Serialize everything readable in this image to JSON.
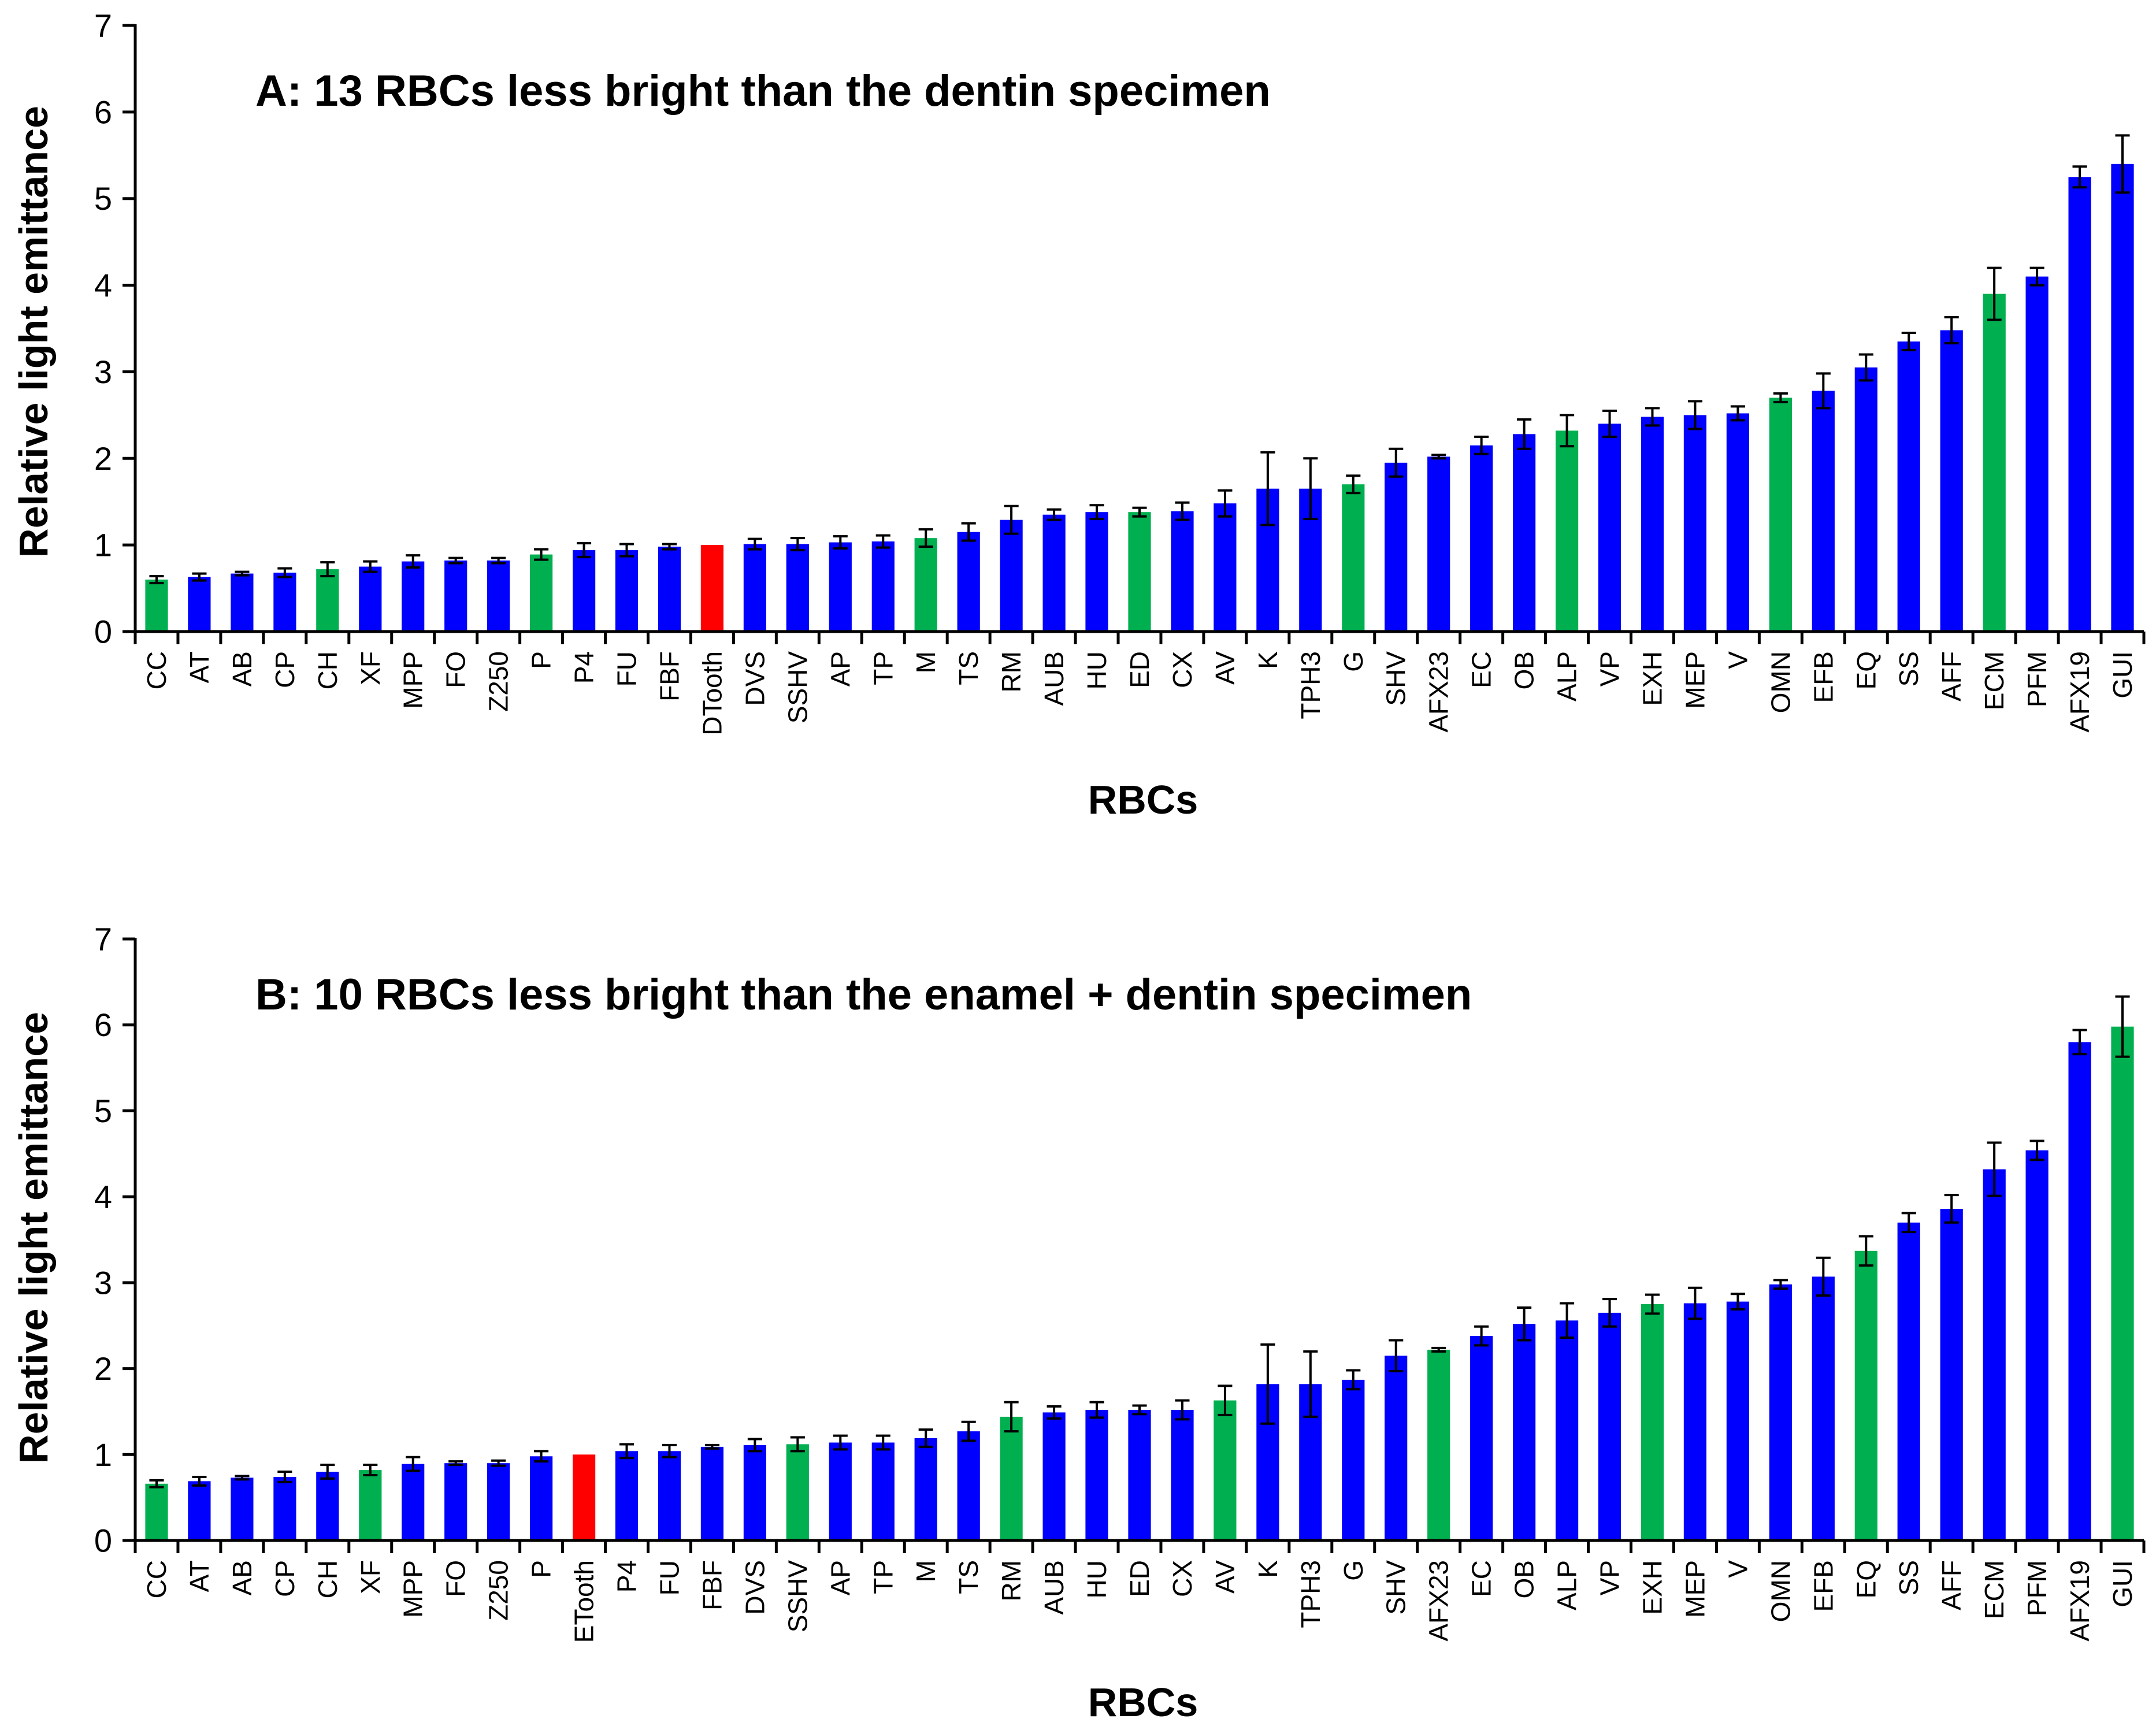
{
  "colors": {
    "standard": "#0000ff",
    "highlight": "#00b050",
    "specimen": "#ff0000"
  },
  "chart_data": [
    {
      "type": "bar",
      "title": "A: 13 RBCs less bright than the dentin specimen",
      "xlabel": "RBCs",
      "ylabel": "Relative light emittance",
      "ylim": [
        0,
        7
      ],
      "yticks": [
        "0",
        "1",
        "2",
        "3",
        "4",
        "5",
        "6",
        "7"
      ],
      "categories": [
        "CC",
        "AT",
        "AB",
        "CP",
        "CH",
        "XF",
        "MPP",
        "FO",
        "Z250",
        "P",
        "P4",
        "FU",
        "FBF",
        "DTooth",
        "DVS",
        "SSHV",
        "AP",
        "TP",
        "M",
        "TS",
        "RM",
        "AUB",
        "HU",
        "ED",
        "CX",
        "AV",
        "K",
        "TPH3",
        "G",
        "SHV",
        "AFX23",
        "EC",
        "OB",
        "ALP",
        "VP",
        "EXH",
        "MEP",
        "V",
        "OMN",
        "EFB",
        "EQ",
        "SS",
        "AFF",
        "ECM",
        "PFM",
        "AFX19",
        "GUI"
      ],
      "values": [
        0.6,
        0.63,
        0.67,
        0.68,
        0.72,
        0.75,
        0.81,
        0.82,
        0.82,
        0.89,
        0.94,
        0.94,
        0.98,
        1.0,
        1.01,
        1.01,
        1.03,
        1.04,
        1.08,
        1.15,
        1.29,
        1.35,
        1.38,
        1.38,
        1.39,
        1.48,
        1.65,
        1.65,
        1.7,
        1.95,
        2.02,
        2.15,
        2.28,
        2.32,
        2.4,
        2.48,
        2.5,
        2.52,
        2.7,
        2.78,
        3.05,
        3.35,
        3.48,
        3.9,
        4.1,
        5.25,
        5.4
      ],
      "errors": [
        0.04,
        0.04,
        0.02,
        0.05,
        0.08,
        0.06,
        0.07,
        0.03,
        0.03,
        0.06,
        0.08,
        0.07,
        0.03,
        0,
        0.06,
        0.07,
        0.07,
        0.07,
        0.1,
        0.1,
        0.16,
        0.06,
        0.08,
        0.05,
        0.1,
        0.15,
        0.42,
        0.35,
        0.1,
        0.16,
        0.02,
        0.1,
        0.17,
        0.18,
        0.15,
        0.1,
        0.16,
        0.08,
        0.05,
        0.2,
        0.15,
        0.1,
        0.15,
        0.3,
        0.1,
        0.12,
        0.33
      ],
      "colors": [
        "#00b050",
        "#0000ff",
        "#0000ff",
        "#0000ff",
        "#00b050",
        "#0000ff",
        "#0000ff",
        "#0000ff",
        "#0000ff",
        "#00b050",
        "#0000ff",
        "#0000ff",
        "#0000ff",
        "#ff0000",
        "#0000ff",
        "#0000ff",
        "#0000ff",
        "#0000ff",
        "#00b050",
        "#0000ff",
        "#0000ff",
        "#0000ff",
        "#0000ff",
        "#00b050",
        "#0000ff",
        "#0000ff",
        "#0000ff",
        "#0000ff",
        "#00b050",
        "#0000ff",
        "#0000ff",
        "#0000ff",
        "#0000ff",
        "#00b050",
        "#0000ff",
        "#0000ff",
        "#0000ff",
        "#0000ff",
        "#00b050",
        "#0000ff",
        "#0000ff",
        "#0000ff",
        "#0000ff",
        "#00b050",
        "#0000ff",
        "#0000ff",
        "#0000ff"
      ]
    },
    {
      "type": "bar",
      "title": "B: 10 RBCs less bright than the enamel + dentin specimen",
      "xlabel": "RBCs",
      "ylabel": "Relative light emittance",
      "ylim": [
        0,
        7
      ],
      "yticks": [
        "0",
        "1",
        "2",
        "3",
        "4",
        "5",
        "6",
        "7"
      ],
      "categories": [
        "CC",
        "AT",
        "AB",
        "CP",
        "CH",
        "XF",
        "MPP",
        "FO",
        "Z250",
        "P",
        "ETooth",
        "P4",
        "FU",
        "FBF",
        "DVS",
        "SSHV",
        "AP",
        "TP",
        "M",
        "TS",
        "RM",
        "AUB",
        "HU",
        "ED",
        "CX",
        "AV",
        "K",
        "TPH3",
        "G",
        "SHV",
        "AFX23",
        "EC",
        "OB",
        "ALP",
        "VP",
        "EXH",
        "MEP",
        "V",
        "OMN",
        "EFB",
        "EQ",
        "SS",
        "AFF",
        "ECM",
        "PFM",
        "AFX19",
        "GUI"
      ],
      "values": [
        0.66,
        0.69,
        0.73,
        0.74,
        0.8,
        0.82,
        0.89,
        0.9,
        0.9,
        0.98,
        1.0,
        1.04,
        1.04,
        1.09,
        1.11,
        1.12,
        1.14,
        1.14,
        1.19,
        1.27,
        1.44,
        1.49,
        1.52,
        1.52,
        1.52,
        1.63,
        1.82,
        1.82,
        1.87,
        2.15,
        2.22,
        2.38,
        2.52,
        2.56,
        2.65,
        2.75,
        2.76,
        2.78,
        2.98,
        3.07,
        3.37,
        3.7,
        3.86,
        4.32,
        4.54,
        5.8,
        5.98
      ],
      "errors": [
        0.04,
        0.05,
        0.02,
        0.06,
        0.08,
        0.06,
        0.08,
        0.02,
        0.03,
        0.06,
        0,
        0.08,
        0.07,
        0.02,
        0.07,
        0.08,
        0.08,
        0.08,
        0.1,
        0.11,
        0.17,
        0.07,
        0.09,
        0.05,
        0.11,
        0.17,
        0.46,
        0.38,
        0.11,
        0.18,
        0.02,
        0.11,
        0.19,
        0.2,
        0.16,
        0.11,
        0.18,
        0.09,
        0.05,
        0.22,
        0.17,
        0.11,
        0.16,
        0.31,
        0.11,
        0.14,
        0.35
      ],
      "colors": [
        "#00b050",
        "#0000ff",
        "#0000ff",
        "#0000ff",
        "#0000ff",
        "#00b050",
        "#0000ff",
        "#0000ff",
        "#0000ff",
        "#0000ff",
        "#ff0000",
        "#0000ff",
        "#0000ff",
        "#0000ff",
        "#0000ff",
        "#00b050",
        "#0000ff",
        "#0000ff",
        "#0000ff",
        "#0000ff",
        "#00b050",
        "#0000ff",
        "#0000ff",
        "#0000ff",
        "#0000ff",
        "#00b050",
        "#0000ff",
        "#0000ff",
        "#0000ff",
        "#0000ff",
        "#00b050",
        "#0000ff",
        "#0000ff",
        "#0000ff",
        "#0000ff",
        "#00b050",
        "#0000ff",
        "#0000ff",
        "#0000ff",
        "#0000ff",
        "#00b050",
        "#0000ff",
        "#0000ff",
        "#0000ff",
        "#0000ff",
        "#0000ff",
        "#00b050"
      ]
    }
  ]
}
